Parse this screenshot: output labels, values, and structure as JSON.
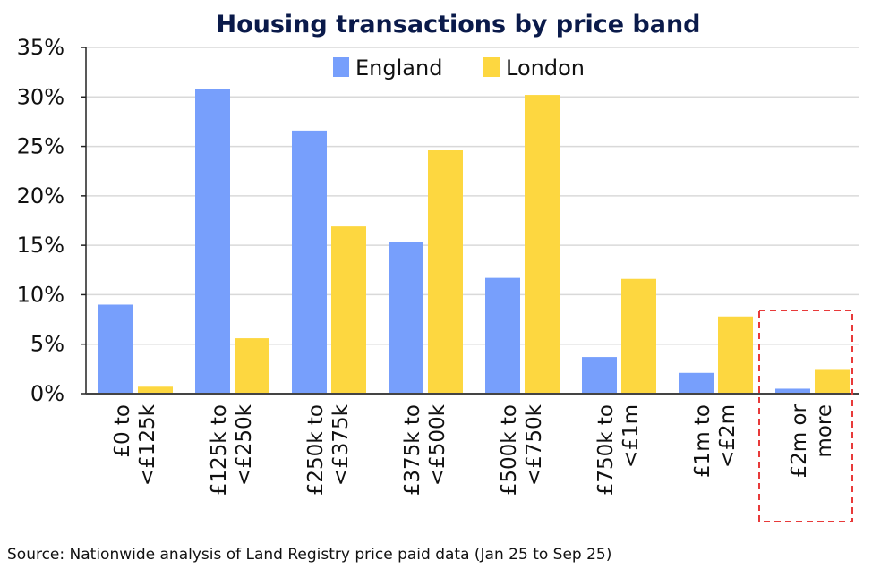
{
  "chart_data": {
    "type": "bar",
    "title": "Housing transactions by price band",
    "categories": [
      [
        "£0 to",
        "<£125k"
      ],
      [
        "£125k to",
        "<£250k"
      ],
      [
        "£250k to",
        "<£375k"
      ],
      [
        "£375k to",
        "<£500k"
      ],
      [
        "£500k to",
        "<£750k"
      ],
      [
        "£750k to",
        "<£1m"
      ],
      [
        "£1m to",
        "<£2m"
      ],
      [
        "£2m or",
        "more"
      ]
    ],
    "series": [
      {
        "name": "England",
        "color": "#779ffc",
        "values": [
          9.0,
          30.8,
          26.6,
          15.3,
          11.7,
          3.7,
          2.1,
          0.5
        ]
      },
      {
        "name": "London",
        "color": "#fdd740",
        "values": [
          0.7,
          5.6,
          16.9,
          24.6,
          30.2,
          11.6,
          7.8,
          2.4
        ]
      }
    ],
    "yticks": [
      "0%",
      "5%",
      "10%",
      "15%",
      "20%",
      "25%",
      "30%",
      "35%"
    ],
    "ylim": [
      0,
      35
    ],
    "grid": true,
    "legend": "top-center",
    "highlight": {
      "category_index": 7,
      "style": "red dashed box",
      "color": "#e83a3a"
    },
    "source": "Source: Nationwide analysis of Land Registry price paid data (Jan 25 to Sep 25)"
  }
}
